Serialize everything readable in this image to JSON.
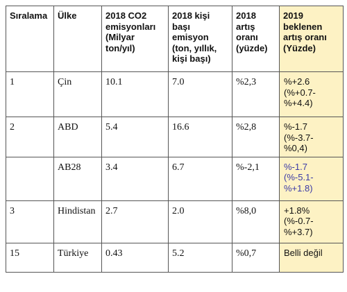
{
  "headers": [
    "Sıralama",
    "Ülke",
    "2018 CO2 emisyonları (Milyar ton/yıl)",
    "2018 kişi başı emisyon (ton, yıllık, kişi başı)",
    "2018 artış oranı (yüzde)",
    "2019 beklenen artış oranı  (Yüzde)"
  ],
  "rows": [
    {
      "rank": "1",
      "country": "Çin",
      "co2": "10.1",
      "per_capita": "7.0",
      "growth_2018": "%2,3",
      "growth_2019": [
        "%+2.6",
        "(%+0.7-",
        "%+4.4)"
      ]
    },
    {
      "rank": "2",
      "country": "ABD",
      "co2": "5.4",
      "per_capita": "16.6",
      "growth_2018": "%2,8",
      "growth_2019": [
        "%-1.7",
        "(%-3.7-",
        "%0,4)"
      ]
    },
    {
      "rank": "",
      "country": "AB28",
      "co2": "3.4",
      "per_capita": "6.7",
      "growth_2018": "%-2,1",
      "growth_2019": [
        "%-1.7",
        "(%-5.1-",
        "%+1.8)"
      ]
    },
    {
      "rank": "3",
      "country": "Hindistan",
      "co2": "2.7",
      "per_capita": "2.0",
      "growth_2018": "%8,0",
      "growth_2019": [
        "+1.8%",
        "(%-0.7-",
        "%+3.7)"
      ]
    },
    {
      "rank": "15",
      "country": "Türkiye",
      "co2": "0.43",
      "per_capita": "5.2",
      "growth_2018": "%0,7",
      "growth_2019": [
        "Belli değil"
      ]
    }
  ],
  "colors": {
    "highlight": "#fdf2c4",
    "border": "#555555",
    "ab28_blue_text": "#3a3aa6"
  }
}
